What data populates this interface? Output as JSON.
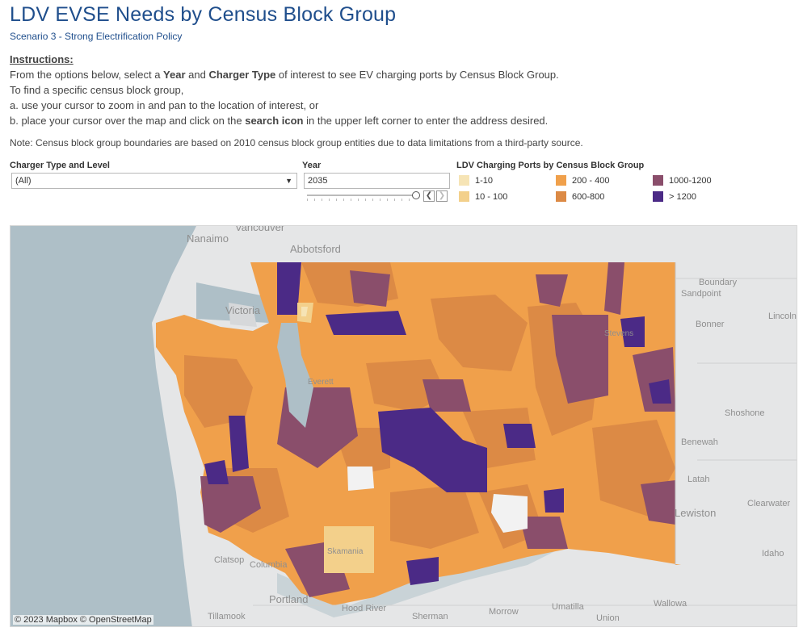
{
  "header": {
    "title": "LDV EVSE Needs by Census Block Group",
    "subtitle": "Scenario 3 - Strong Electrification Policy"
  },
  "instructions": {
    "heading": "Instructions:",
    "line1_a": "From the options below, select a ",
    "line1_year": "Year",
    "line1_b": " and ",
    "line1_charger": "Charger Type",
    "line1_c": " of interest to see EV charging ports by Census Block Group.",
    "line2": "To find a specific census block group,",
    "line3": "a. use your cursor to zoom in and pan to the location of interest, or",
    "line4_a": "b. place your cursor over the map and click on the ",
    "line4_icon": "search icon",
    "line4_b": " in the upper left corner to enter the address desired.",
    "note": "Note: Census block group boundaries are based on 2010 census block group entities due to data limitations from a third-party source."
  },
  "controls": {
    "charger_label": "Charger Type and Level",
    "charger_value": "(All)",
    "year_label": "Year",
    "year_value": "2035",
    "prev_glyph": "❮",
    "next_glyph": "❯",
    "caret_glyph": "▼"
  },
  "legend": {
    "title": "LDV Charging Ports by Census Block Group",
    "items": [
      {
        "label": "1-10",
        "color": "#f6e4b5"
      },
      {
        "label": "10 - 100",
        "color": "#f3d08b"
      },
      {
        "label": "200 - 400",
        "color": "#f0a04b"
      },
      {
        "label": "600-800",
        "color": "#dc8a45"
      },
      {
        "label": "1000-1200",
        "color": "#8a4e6b"
      },
      {
        "label": "> 1200",
        "color": "#4b2a86"
      }
    ]
  },
  "map": {
    "attribution": "© 2023 Mapbox  © OpenStreetMap",
    "water_color": "#aebfc7",
    "place_labels": [
      "Vancouver",
      "Nanaimo",
      "Abbotsford",
      "Victoria",
      "Boundary",
      "Bonner",
      "Lincoln",
      "Sandpoint",
      "Shoshone",
      "Benewah",
      "Latah",
      "Clearwater",
      "Lewiston",
      "Idaho",
      "Clatsop",
      "Columbia",
      "Portland",
      "Tillamook",
      "Hood River",
      "Sherman",
      "Morrow",
      "Umatilla",
      "Union",
      "Wallowa",
      "Skamania",
      "Everett",
      "Stevens"
    ]
  }
}
